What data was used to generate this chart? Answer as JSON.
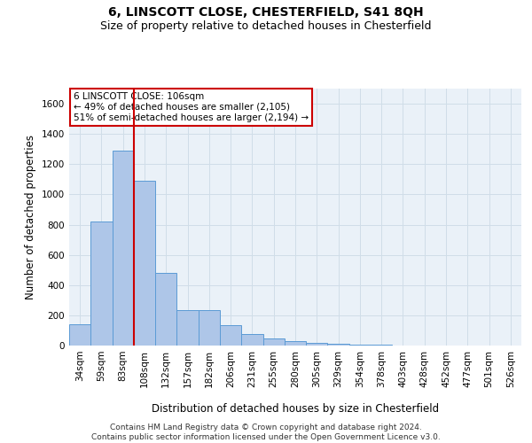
{
  "title1": "6, LINSCOTT CLOSE, CHESTERFIELD, S41 8QH",
  "title2": "Size of property relative to detached houses in Chesterfield",
  "xlabel": "Distribution of detached houses by size in Chesterfield",
  "ylabel": "Number of detached properties",
  "footer": "Contains HM Land Registry data © Crown copyright and database right 2024.\nContains public sector information licensed under the Open Government Licence v3.0.",
  "bar_labels": [
    "34sqm",
    "59sqm",
    "83sqm",
    "108sqm",
    "132sqm",
    "157sqm",
    "182sqm",
    "206sqm",
    "231sqm",
    "255sqm",
    "280sqm",
    "305sqm",
    "329sqm",
    "354sqm",
    "378sqm",
    "403sqm",
    "428sqm",
    "452sqm",
    "477sqm",
    "501sqm",
    "526sqm"
  ],
  "bar_values": [
    140,
    820,
    1290,
    1090,
    480,
    235,
    235,
    135,
    75,
    45,
    28,
    18,
    12,
    8,
    3,
    1,
    0,
    0,
    0,
    0,
    0
  ],
  "bar_color": "#aec6e8",
  "bar_edge_color": "#5b9bd5",
  "vline_x": 2.5,
  "vline_color": "#cc0000",
  "annotation_text": "6 LINSCOTT CLOSE: 106sqm\n← 49% of detached houses are smaller (2,105)\n51% of semi-detached houses are larger (2,194) →",
  "annotation_box_color": "#ffffff",
  "annotation_box_edge": "#cc0000",
  "ylim": [
    0,
    1700
  ],
  "yticks": [
    0,
    200,
    400,
    600,
    800,
    1000,
    1200,
    1400,
    1600
  ],
  "grid_color": "#d0dde8",
  "bg_color": "#eaf1f8",
  "title1_fontsize": 10,
  "title2_fontsize": 9,
  "xlabel_fontsize": 8.5,
  "ylabel_fontsize": 8.5,
  "tick_fontsize": 7.5,
  "footer_fontsize": 6.5
}
